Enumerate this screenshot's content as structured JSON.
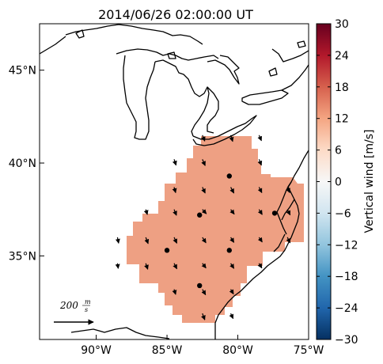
{
  "title": "2014/06/26 02:00:00 UT",
  "map": {
    "lon_range": [
      -94,
      -75
    ],
    "lat_range": [
      30.5,
      47.5
    ],
    "lon_ticks": [
      {
        "value": -90,
        "label": "90°W"
      },
      {
        "value": -85,
        "label": "85°W"
      },
      {
        "value": -80,
        "label": "80°W"
      },
      {
        "value": -75,
        "label": "75°W"
      }
    ],
    "lat_ticks": [
      {
        "value": 45,
        "label": "45°N"
      },
      {
        "value": 40,
        "label": "40°N"
      },
      {
        "value": 35,
        "label": "35°N"
      }
    ],
    "coastline_color": "#000000",
    "field_color": "#eea083"
  },
  "colorbar": {
    "label": "Vertical wind [m/s]",
    "min": -30,
    "max": 30,
    "tick_labels": [
      "30",
      "24",
      "18",
      "12",
      "6",
      "0",
      "−6",
      "−12",
      "−18",
      "−24",
      "−30"
    ],
    "colors_top_to_bottom": [
      "#67001f",
      "#b2182b",
      "#d6604d",
      "#f4a582",
      "#fddbc7",
      "#f7f7f7",
      "#d1e5f0",
      "#92c5de",
      "#4393c3",
      "#2166ac",
      "#053061"
    ]
  },
  "scale_arrow": {
    "label": "200",
    "unit_num": "m",
    "unit_den": "s",
    "speed": 200
  },
  "stations": [
    {
      "lon": -80.6,
      "lat": 39.3
    },
    {
      "lon": -82.7,
      "lat": 37.2
    },
    {
      "lon": -77.4,
      "lat": 37.3
    },
    {
      "lon": -85.0,
      "lat": 35.3
    },
    {
      "lon": -80.6,
      "lat": 35.3
    },
    {
      "lon": -82.7,
      "lat": 33.4
    }
  ],
  "wind_vectors": [
    {
      "lon": -82.5,
      "lat": 41.5,
      "u": 12,
      "v": -30
    },
    {
      "lon": -80.5,
      "lat": 41.5,
      "u": 10,
      "v": -32
    },
    {
      "lon": -78.5,
      "lat": 41.5,
      "u": 12,
      "v": -28
    },
    {
      "lon": -84.5,
      "lat": 40.2,
      "u": 10,
      "v": -30
    },
    {
      "lon": -82.5,
      "lat": 40.2,
      "u": 14,
      "v": -32
    },
    {
      "lon": -78.5,
      "lat": 40.2,
      "u": 12,
      "v": -30
    },
    {
      "lon": -84.5,
      "lat": 38.7,
      "u": 8,
      "v": -28
    },
    {
      "lon": -82.5,
      "lat": 38.7,
      "u": 14,
      "v": -30
    },
    {
      "lon": -80.5,
      "lat": 38.7,
      "u": 16,
      "v": -30
    },
    {
      "lon": -78.5,
      "lat": 38.7,
      "u": 14,
      "v": -28
    },
    {
      "lon": -76.5,
      "lat": 38.7,
      "u": 12,
      "v": -28
    },
    {
      "lon": -86.5,
      "lat": 37.5,
      "u": 8,
      "v": -26
    },
    {
      "lon": -84.5,
      "lat": 37.5,
      "u": 12,
      "v": -30
    },
    {
      "lon": -82.5,
      "lat": 37.5,
      "u": 20,
      "v": -22
    },
    {
      "lon": -80.5,
      "lat": 37.5,
      "u": 18,
      "v": -24
    },
    {
      "lon": -78.5,
      "lat": 37.5,
      "u": 16,
      "v": -26
    },
    {
      "lon": -76.5,
      "lat": 37.5,
      "u": 14,
      "v": -28
    },
    {
      "lon": -88.5,
      "lat": 36.0,
      "u": 6,
      "v": -30
    },
    {
      "lon": -86.5,
      "lat": 36.0,
      "u": 12,
      "v": -32
    },
    {
      "lon": -84.5,
      "lat": 36.0,
      "u": 14,
      "v": -30
    },
    {
      "lon": -82.5,
      "lat": 36.0,
      "u": 18,
      "v": -28
    },
    {
      "lon": -80.5,
      "lat": 36.0,
      "u": 16,
      "v": -26
    },
    {
      "lon": -78.5,
      "lat": 36.0,
      "u": 16,
      "v": -24
    },
    {
      "lon": -76.5,
      "lat": 36.0,
      "u": 14,
      "v": -28
    },
    {
      "lon": -88.5,
      "lat": 34.6,
      "u": 4,
      "v": -26
    },
    {
      "lon": -86.5,
      "lat": 34.6,
      "u": 10,
      "v": -30
    },
    {
      "lon": -84.5,
      "lat": 34.6,
      "u": 14,
      "v": -28
    },
    {
      "lon": -82.5,
      "lat": 34.6,
      "u": 18,
      "v": -24
    },
    {
      "lon": -80.5,
      "lat": 34.6,
      "u": 16,
      "v": -26
    },
    {
      "lon": -78.5,
      "lat": 34.6,
      "u": 14,
      "v": -24
    },
    {
      "lon": -84.5,
      "lat": 33.2,
      "u": 8,
      "v": -26
    },
    {
      "lon": -82.5,
      "lat": 33.2,
      "u": 16,
      "v": -28
    },
    {
      "lon": -80.5,
      "lat": 33.2,
      "u": 14,
      "v": -24
    },
    {
      "lon": -82.5,
      "lat": 31.9,
      "u": 12,
      "v": -32
    },
    {
      "lon": -80.5,
      "lat": 31.9,
      "u": 12,
      "v": -26
    }
  ]
}
